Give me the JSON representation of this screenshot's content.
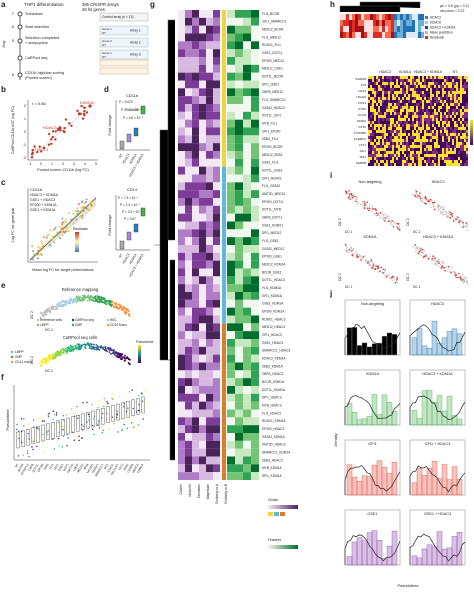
{
  "a": {
    "label": "a",
    "title": "THP1 differentiation",
    "library": "385 CRISPR arrays",
    "hits": "26 hit genes",
    "day": "Day",
    "days": [
      "-7",
      "-5",
      "0",
      "6"
    ],
    "steps": [
      "Transduce",
      "Start selection",
      "Selection completed",
      "+ doxycycline",
      "CaRPool seq",
      "CD11b high/low sorting",
      "(Pooled screen)"
    ],
    "control": "Control array (n = 13)",
    "arrays": [
      "Array 1",
      "Array 2",
      "Array 3"
    ],
    "genes": [
      "Gene 1",
      "Gene 2"
    ],
    "nt": "NT"
  },
  "b": {
    "label": "b",
    "r": "r = 0.86",
    "genes": [
      "KDM1A",
      "HDAC3",
      "ATXN7L3"
    ],
    "ylabel": "CaRPool CD11b AST (log FC)",
    "xlabel": "Pooled screen CD11b (log FC)",
    "xticks": [
      "-1",
      "0",
      "1",
      "2",
      "3",
      "4",
      "5"
    ],
    "yticks": [
      "-2",
      "-1",
      "0",
      "1",
      "2"
    ]
  },
  "d": {
    "label": "d",
    "title": "CD11b",
    "ylabel": "Fold change",
    "pvalues": [
      "P = 0.023",
      "P = 4.8 × 10⁻⁵",
      "P = 4.8 × 10⁻⁵",
      "P = 0.026"
    ],
    "groups": [
      "NT",
      "HDAC3",
      "KDM1A",
      "HDAC3 + KDM1A"
    ]
  },
  "c": {
    "label": "c",
    "title": "CD11b",
    "pairs": [
      "HDAC3 + KDM1A",
      "GSE1 + HDAC3",
      "EP300 + KDM1A",
      "GSE1 + KDM1A"
    ],
    "ylabel": "Log FC for gene pair",
    "xlabel": "Mean log FC for single perturbations",
    "legend": "Residuals",
    "cd14": "CD14",
    "pvalues": [
      "P = 7.3 × 10⁻⁴",
      "P = 1.3 × 10⁻⁷",
      "P = 2.0 × 10⁻⁴",
      "P = 0.67"
    ],
    "ylabel2": "Fold change",
    "groups": [
      "NT",
      "HDAC3",
      "KDM1A",
      "HDAC3 + KDM1A"
    ]
  },
  "e": {
    "label": "e",
    "top": "Reference mapping",
    "legend": [
      "Reference cells",
      "CaRPool seq",
      "HSC",
      "LMPP",
      "GMP",
      "CD14 Mono"
    ],
    "bottom": "CaRPool seq cells",
    "legend2": [
      "LMPP",
      "GMP",
      "CD14 mono"
    ],
    "scale": "Pseudotime",
    "x": "DC 1",
    "y": "DC 2"
  },
  "f": {
    "label": "f",
    "ylabel": "Pseudotime",
    "groups": [
      "NT",
      "BCOR",
      "ATXN7L3",
      "CBFB",
      "DOT1L",
      "EP300",
      "ERG",
      "FLI1",
      "GFI1",
      "GSE1",
      "IKZF1",
      "KMT2D",
      "LMO2",
      "MED12",
      "MYB",
      "NCOR1",
      "RUNX1",
      "SMARCC1",
      "SPI1",
      "STAG2",
      "TBL1XR1",
      "TET2",
      "ZEB2",
      "CEBPA",
      "HDAC3",
      "KDM1A"
    ]
  },
  "g": {
    "label": "g",
    "rows": [
      "FLI1_BCOR",
      "GFI1_SMARCC1",
      "MED12_BCOR",
      "FLI1_MED12",
      "RUNX1_FLI1",
      "GSE1_DOT1L",
      "EP300_MED12",
      "MED12_GSE1",
      "DOT1L_BCOR",
      "SPI1_GSE1",
      "CBFB_MED12",
      "FLI1_SMARCC1",
      "GATA2_HDAC3",
      "DOT1L_GFI1",
      "MYB_FLI1",
      "GFI1_EP300",
      "ZEB2_FLI1",
      "EP300_BCOR",
      "MED12_ZEB2",
      "GSE1_FLI1",
      "DOT1L_GSE1",
      "GFI1_RUNX1",
      "FLI1_GATA2",
      "KMT2D_MED12",
      "EP300_DOT1L",
      "DOT1L_MYB",
      "CBFB_DOT1L",
      "GSE1_RUNX1",
      "SPI1_MED12",
      "FLI1_GSE1",
      "GATA2_MED12",
      "EP300_GSE1",
      "MED12_KDM1A",
      "BCOR_GSE1",
      "DOT1L_HDAC3",
      "FLI1_KDM1A",
      "GFI1_KDM1A",
      "GSE1_KDM1A",
      "EP300_KDM1A",
      "RUNX1_HDAC3",
      "MED12_HDAC3",
      "GFI1_HDAC3",
      "GSE1_HDAC3",
      "SMARCC1_HDAC3",
      "HDAC3_KDM1A",
      "ZEB2_KDM1A",
      "CBFB_HDAC3",
      "BCOR_KDM1A",
      "DOT1L_KDM1A",
      "SPI1_HDAC3",
      "MYB_HDAC3",
      "FLI1_HDAC3",
      "RUNX1_KDM1A",
      "EP300_HDAC3",
      "GATA2_KDM1A",
      "KMT2D_HDAC3",
      "SMARCC1_KDM1A",
      "ZEB2_HDAC3",
      "MYB_KDM1A",
      "SPI1_KDM1A"
    ],
    "columns": [
      "Cluster",
      "Model fit",
      "Deviation",
      "Magnitude",
      "Similarity to A",
      "Similarity to B"
    ],
    "legend": [
      "Cluster",
      "Features"
    ]
  },
  "h": {
    "label": "h",
    "stats": "ρs = 0.8 (ρp = 0.2)",
    "stats2": "neu.dom = 0.22",
    "legend": [
      "HDAC3",
      "KDM1A",
      "HDAC3 + KDM1A",
      "Mean prediction",
      "Residuals"
    ],
    "groups": [
      "HDAC3",
      "KDM1A",
      "HDAC3 + KDM1A",
      "NT"
    ],
    "genes": [
      "S100A8",
      "LYZ",
      "CD14",
      "ITGAM",
      "FCN1",
      "CTSS",
      "VCAN",
      "MNDA",
      "CSTA",
      "TYROBP",
      "FCER1G",
      "LST1",
      "AIF1",
      "SPI1",
      "CEBPB"
    ],
    "scale": "Expression"
  },
  "i": {
    "label": "i",
    "panels": [
      "Non-targeting",
      "HDAC3",
      "KDM1A",
      "HDAC3 + KDM1A"
    ],
    "x": "DC 1",
    "y": "DC 2"
  },
  "j": {
    "label": "j",
    "panels": [
      "Non-targeting",
      "HDAC3",
      "KDM1A",
      "HDAC3 + KDM1A",
      "GFI1",
      "GFI1 + HDAC3",
      "GSE1",
      "GSE1 + HDAC3"
    ],
    "ylabel": "Density",
    "xlabel": "Pseudotime"
  }
}
